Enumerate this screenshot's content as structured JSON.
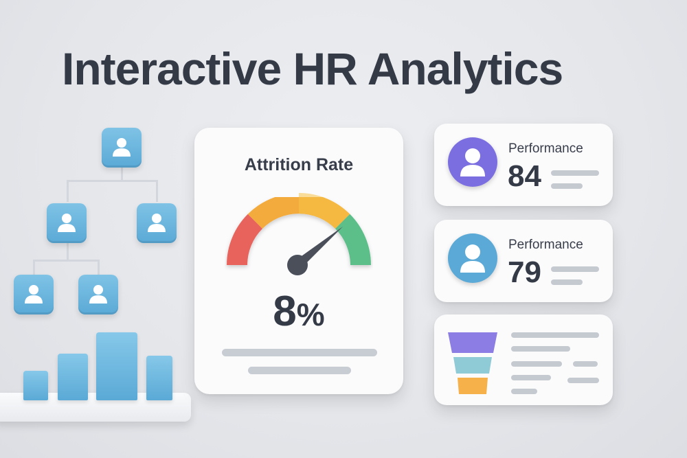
{
  "title": "Interactive HR Analytics",
  "attrition": {
    "label": "Attrition Rate",
    "value": "8",
    "unit": "%",
    "gauge_level": 0.78,
    "colors": {
      "red": "#e8635b",
      "orange": "#f4ab3e",
      "yellow": "#f6c343",
      "green": "#5cbf8a",
      "needle": "#4a4f5a"
    }
  },
  "metrics": [
    {
      "label": "Performance",
      "value": "84",
      "avatar_color": "#7b6ee0"
    },
    {
      "label": "Performance",
      "value": "79",
      "avatar_color": "#5aa9d6"
    }
  ],
  "funnel": {
    "colors": [
      "#8b7de3",
      "#8fcbd6",
      "#f6b14a"
    ]
  },
  "org_chart": {
    "node_color": "#5aa9d6",
    "icon": "user-icon"
  },
  "bar_chart": {
    "values": [
      0.33,
      0.52,
      0.76,
      0.5
    ]
  }
}
